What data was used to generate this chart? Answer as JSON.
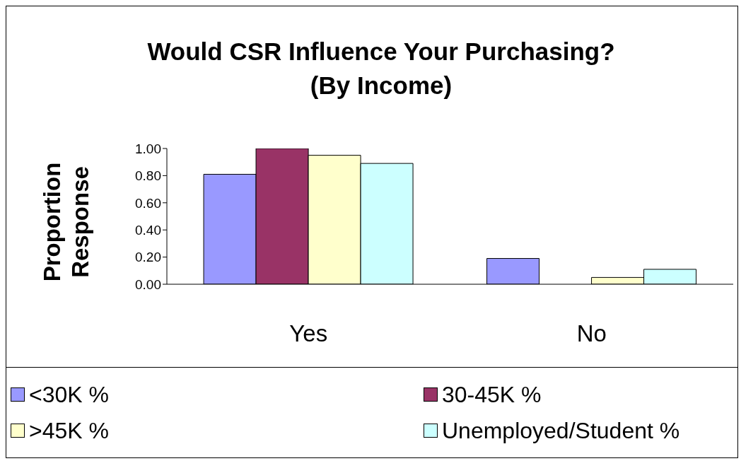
{
  "chart_data": {
    "type": "bar",
    "title": "Would CSR Influence Your Purchasing? (By Income)",
    "ylabel": "Proportion Response",
    "categories": [
      "Yes",
      "No"
    ],
    "series": [
      {
        "name": "<30K %",
        "color": "#9999ff",
        "values": [
          0.81,
          0.19
        ]
      },
      {
        "name": "30-45K %",
        "color": "#993366",
        "values": [
          1.0,
          0
        ]
      },
      {
        "name": ">45K %",
        "color": "#ffffcc",
        "values": [
          0.95,
          0.05
        ]
      },
      {
        "name": "Unemployed/Student %",
        "color": "#ccffff",
        "values": [
          0.89,
          0.11
        ]
      }
    ],
    "ylim": [
      0,
      1
    ],
    "yticks": [
      {
        "value": 0,
        "label": "0.00"
      },
      {
        "value": 0.2,
        "label": "0.20"
      },
      {
        "value": 0.4,
        "label": "0.40"
      },
      {
        "value": 0.6,
        "label": "0.60"
      },
      {
        "value": 0.8,
        "label": "0.80"
      },
      {
        "value": 1,
        "label": "1.00"
      }
    ],
    "grid": false,
    "legend": "bottom"
  }
}
